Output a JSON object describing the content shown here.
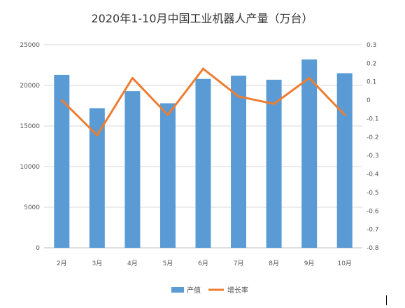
{
  "colors": {
    "bar": "#5B9BD5",
    "line": "#ED7D31",
    "grid": "#D9D9D9",
    "axis": "#BFBFBF"
  },
  "chart_data": {
    "type": "bar",
    "title": "2020年1-10月中国工业机器人产量（万台）",
    "categories": [
      "2月",
      "3月",
      "4月",
      "5月",
      "6月",
      "7月",
      "8月",
      "9月",
      "10月"
    ],
    "series": [
      {
        "name": "产值",
        "type": "bar",
        "axis": "left",
        "values": [
          21300,
          17200,
          19300,
          17800,
          20800,
          21200,
          20700,
          23200,
          21500
        ]
      },
      {
        "name": "增长率",
        "type": "line",
        "axis": "right",
        "values": [
          0.0,
          -0.19,
          0.12,
          -0.08,
          0.17,
          0.02,
          -0.02,
          0.12,
          -0.08
        ]
      }
    ],
    "y_left": {
      "min": 0,
      "max": 25000,
      "ticks": [
        "0",
        "5000",
        "10000",
        "15000",
        "20000",
        "25000"
      ]
    },
    "y_right": {
      "min": -0.8,
      "max": 0.3,
      "ticks": [
        "-0.8",
        "-0.7",
        "-0.6",
        "-0.5",
        "-0.4",
        "-0.3",
        "-0.2",
        "-0.1",
        "0",
        "0.1",
        "0.2",
        "0.3"
      ]
    },
    "grid": true,
    "legend": "bottom"
  }
}
